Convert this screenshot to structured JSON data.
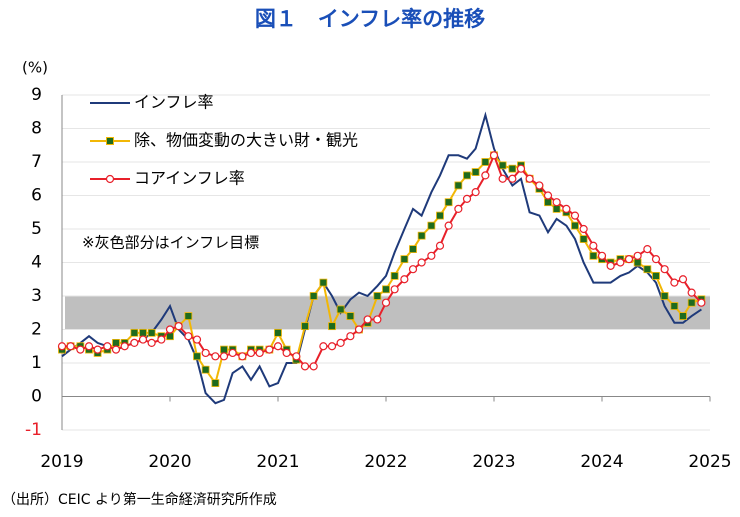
{
  "chart_data": {
    "type": "line",
    "title": "図１　インフレ率の推移",
    "y_label": "(%)",
    "annotation": "※灰色部分はインフレ目標",
    "source": "（出所）CEIC より第一生命経済研究所作成",
    "target_band": [
      2,
      3
    ],
    "target_band_color": "#bfbfbf",
    "x": [
      2019.0,
      2019.08,
      2019.17,
      2019.25,
      2019.33,
      2019.42,
      2019.5,
      2019.58,
      2019.67,
      2019.75,
      2019.83,
      2019.92,
      2020.0,
      2020.08,
      2020.17,
      2020.25,
      2020.33,
      2020.42,
      2020.5,
      2020.58,
      2020.67,
      2020.75,
      2020.83,
      2020.92,
      2021.0,
      2021.08,
      2021.17,
      2021.25,
      2021.33,
      2021.42,
      2021.5,
      2021.58,
      2021.67,
      2021.75,
      2021.83,
      2021.92,
      2022.0,
      2022.08,
      2022.17,
      2022.25,
      2022.33,
      2022.42,
      2022.5,
      2022.58,
      2022.67,
      2022.75,
      2022.83,
      2022.92,
      2023.0,
      2023.08,
      2023.17,
      2023.25,
      2023.33,
      2023.42,
      2023.5,
      2023.58,
      2023.67,
      2023.75,
      2023.83,
      2023.92,
      2024.0,
      2024.08,
      2024.17,
      2024.25,
      2024.33,
      2024.42,
      2024.5,
      2024.58,
      2024.67,
      2024.75,
      2024.83,
      2024.92
    ],
    "series": [
      {
        "name": "インフレ率",
        "color": "#1f3a7a",
        "marker": "none",
        "values": [
          1.2,
          1.4,
          1.6,
          1.8,
          1.6,
          1.5,
          1.4,
          1.5,
          1.6,
          1.7,
          1.9,
          2.3,
          2.7,
          2.0,
          1.7,
          1.1,
          0.1,
          -0.2,
          -0.1,
          0.7,
          0.9,
          0.5,
          0.9,
          0.3,
          0.4,
          1.0,
          1.0,
          2.0,
          3.0,
          3.4,
          3.0,
          2.5,
          2.9,
          3.1,
          3.0,
          3.3,
          3.6,
          4.3,
          5.0,
          5.6,
          5.4,
          6.1,
          6.6,
          7.2,
          7.2,
          7.1,
          7.4,
          8.4,
          7.4,
          6.8,
          6.3,
          6.5,
          5.5,
          5.4,
          4.9,
          5.3,
          5.1,
          4.7,
          4.0,
          3.4,
          3.4,
          3.4,
          3.6,
          3.7,
          3.9,
          3.7,
          3.4,
          2.7,
          2.2,
          2.2,
          2.4,
          2.6
        ]
      },
      {
        "name": "除、物価変動の大きい財・観光",
        "color": "#f2b705",
        "marker": "square",
        "marker_color": "#1e6b1e",
        "values": [
          1.4,
          1.5,
          1.5,
          1.4,
          1.3,
          1.4,
          1.6,
          1.6,
          1.9,
          1.9,
          1.9,
          1.8,
          1.8,
          2.1,
          2.4,
          1.2,
          0.8,
          0.4,
          1.4,
          1.4,
          1.2,
          1.4,
          1.4,
          1.4,
          1.9,
          1.4,
          1.1,
          2.1,
          3.0,
          3.4,
          2.1,
          2.6,
          2.4,
          2.0,
          2.2,
          3.0,
          3.2,
          3.6,
          4.1,
          4.4,
          4.8,
          5.1,
          5.4,
          5.8,
          6.3,
          6.6,
          6.7,
          7.0,
          7.2,
          6.9,
          6.8,
          6.9,
          6.5,
          6.2,
          5.8,
          5.6,
          5.5,
          5.1,
          4.7,
          4.2,
          4.1,
          4.0,
          4.1,
          4.1,
          4.0,
          3.8,
          3.6,
          3.0,
          2.7,
          2.4,
          2.8,
          2.9
        ]
      },
      {
        "name": "コアインフレ率",
        "color": "#e8202a",
        "marker": "circle",
        "marker_color": "#ffffff",
        "values": [
          1.5,
          1.5,
          1.4,
          1.5,
          1.4,
          1.5,
          1.4,
          1.5,
          1.6,
          1.7,
          1.6,
          1.7,
          2.0,
          2.1,
          1.8,
          1.7,
          1.3,
          1.2,
          1.2,
          1.3,
          1.2,
          1.3,
          1.3,
          1.4,
          1.5,
          1.3,
          1.2,
          0.9,
          0.9,
          1.5,
          1.5,
          1.6,
          1.8,
          2.0,
          2.3,
          2.3,
          2.8,
          3.2,
          3.5,
          3.8,
          4.0,
          4.2,
          4.5,
          5.1,
          5.6,
          5.9,
          6.1,
          6.6,
          7.2,
          6.5,
          6.5,
          6.8,
          6.5,
          6.3,
          6.0,
          5.8,
          5.6,
          5.4,
          5.0,
          4.5,
          4.2,
          3.9,
          4.0,
          4.1,
          4.2,
          4.4,
          4.1,
          3.8,
          3.4,
          3.5,
          3.1,
          2.8
        ]
      }
    ],
    "xlim": [
      2019,
      2025
    ],
    "xticks": [
      2019,
      2020,
      2021,
      2022,
      2023,
      2024,
      2025
    ],
    "ylim": [
      -1,
      9
    ],
    "yticks": [
      -1,
      0,
      1,
      2,
      3,
      4,
      5,
      6,
      7,
      8,
      9
    ],
    "negative_tick_color": "#e8202a",
    "grid": true
  }
}
